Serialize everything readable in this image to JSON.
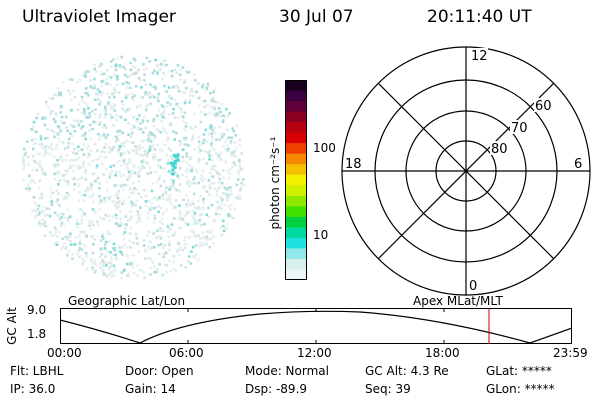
{
  "header": {
    "instrument": "Ultraviolet Imager",
    "date": "30 Jul 07",
    "time": "20:11:40 UT"
  },
  "image_panel": {
    "name": "uv-auroral-image",
    "speckle_color": "#3fd6d0"
  },
  "colorbar": {
    "label": "photon cm⁻²s⁻¹",
    "ticks": [
      {
        "label": "100",
        "value": 100
      },
      {
        "label": "10",
        "value": 10
      }
    ],
    "colors_top_to_bottom": [
      "#1a0020",
      "#3a0040",
      "#60003a",
      "#8a0020",
      "#b40010",
      "#d80000",
      "#f04000",
      "#f58a00",
      "#f5c000",
      "#f5f000",
      "#d0f000",
      "#90e800",
      "#40e000",
      "#00d040",
      "#00d8a0",
      "#20e0e0",
      "#90e8e8",
      "#d8f0f0",
      "#eef7f7"
    ]
  },
  "polar_plot": {
    "hour_labels": {
      "top": "12",
      "right": "6",
      "bottom": "0",
      "left": "18"
    },
    "lat_labels": [
      "60",
      "70",
      "80"
    ]
  },
  "alt_panel": {
    "left_caption": "Geographic Lat/Lon",
    "right_caption": "Apex  MLat/MLT",
    "ylabel": "GC Alt",
    "ytick_top": "9.0",
    "ytick_bottom": "1.8",
    "x_ticks": [
      "00:00",
      "06:00",
      "12:00",
      "18:00",
      "23:59"
    ],
    "marker_color": "#c00000"
  },
  "status": {
    "flt": "Flt: LBHL",
    "ip": "IP: 36.0",
    "door": "Door: Open",
    "gain": "Gain: 14",
    "mode": "Mode: Normal",
    "dsp": "Dsp:  -89.9",
    "gc_alt": "GC Alt: 4.3 Re",
    "seq": "Seq: 39",
    "glat": "GLat: *****",
    "glon": "GLon: *****"
  }
}
